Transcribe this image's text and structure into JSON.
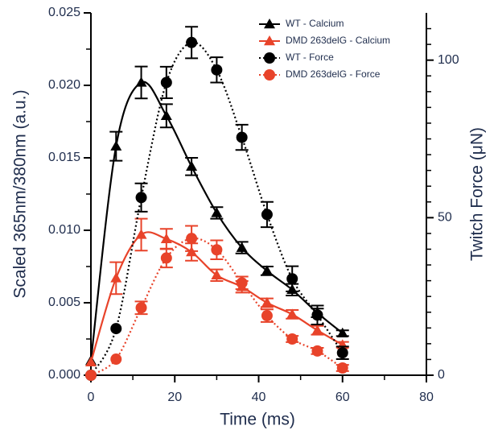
{
  "chart_data": {
    "type": "line",
    "x_label": "Time (ms)",
    "y_label": "Scaled 365nm/380nm (a.u.)",
    "y2_label": "Twitch Force (μN)",
    "x": [
      0,
      6,
      12,
      18,
      24,
      30,
      36,
      42,
      48,
      54,
      60
    ],
    "xlim": [
      0,
      80
    ],
    "xticks": [
      0,
      20,
      40,
      60,
      80
    ],
    "xminorticks": [
      10,
      30,
      50,
      70
    ],
    "ylim": [
      0,
      0.025
    ],
    "yticks": [
      {
        "value": 0,
        "label": "0.000"
      },
      {
        "value": 0.005,
        "label": "0.005"
      },
      {
        "value": 0.01,
        "label": "0.010"
      },
      {
        "value": 0.015,
        "label": "0.015"
      },
      {
        "value": 0.02,
        "label": "0.020"
      },
      {
        "value": 0.025,
        "label": "0.025"
      }
    ],
    "yminorticks": [
      0.0025,
      0.0075,
      0.0125,
      0.0175,
      0.0225
    ],
    "y2lim": [
      0,
      115
    ],
    "y2ticks": [
      0,
      50,
      100
    ],
    "y2minorticks": [
      5,
      10,
      15,
      20,
      25,
      30,
      35,
      40,
      45,
      55,
      60,
      65,
      70,
      75,
      80,
      85,
      90,
      95,
      105,
      110
    ],
    "legend": "upper right",
    "series": [
      {
        "name": "WT - Calcium",
        "color": "#000000",
        "marker": "triangle",
        "line": "solid",
        "axis": "y",
        "values": [
          0.001,
          0.0158,
          0.0202,
          0.0179,
          0.0144,
          0.0112,
          0.0088,
          0.0072,
          0.0059,
          0.0043,
          0.0029
        ],
        "errors": [
          null,
          0.001,
          0.0011,
          0.0008,
          0.0006,
          0.0004,
          0.0004,
          0.0003,
          0.0004,
          0.0003,
          0.0002
        ]
      },
      {
        "name": "DMD 263delG - Calcium",
        "color": "#e8432a",
        "marker": "triangle",
        "line": "solid",
        "axis": "y",
        "values": [
          0.0009,
          0.0067,
          0.0097,
          0.0094,
          0.0085,
          0.0069,
          0.0061,
          0.005,
          0.0042,
          0.0031,
          0.0021
        ],
        "errors": [
          null,
          0.0011,
          0.0011,
          0.0007,
          0.0006,
          0.0004,
          0.0004,
          0.0003,
          0.0003,
          0.0003,
          0.0002
        ]
      },
      {
        "name": "WT - Force",
        "color": "#000000",
        "marker": "circle",
        "line": "dotted",
        "axis": "y2",
        "values": [
          0,
          14.8,
          56.4,
          92.9,
          105.6,
          96.9,
          75.5,
          51,
          30.6,
          19.1,
          7.1
        ],
        "errors": [
          null,
          null,
          4.5,
          5,
          5,
          4,
          4,
          4,
          4,
          3,
          2
        ]
      },
      {
        "name": "DMD 263delG - Force",
        "color": "#e8432a",
        "marker": "circle",
        "line": "dotted",
        "axis": "y2",
        "values": [
          0,
          5.1,
          21.4,
          37.2,
          43.4,
          39.8,
          29.3,
          18.9,
          11.5,
          7.7,
          2.3
        ],
        "errors": [
          null,
          null,
          2,
          3,
          4,
          3,
          2,
          2,
          1,
          1,
          1
        ]
      }
    ]
  }
}
